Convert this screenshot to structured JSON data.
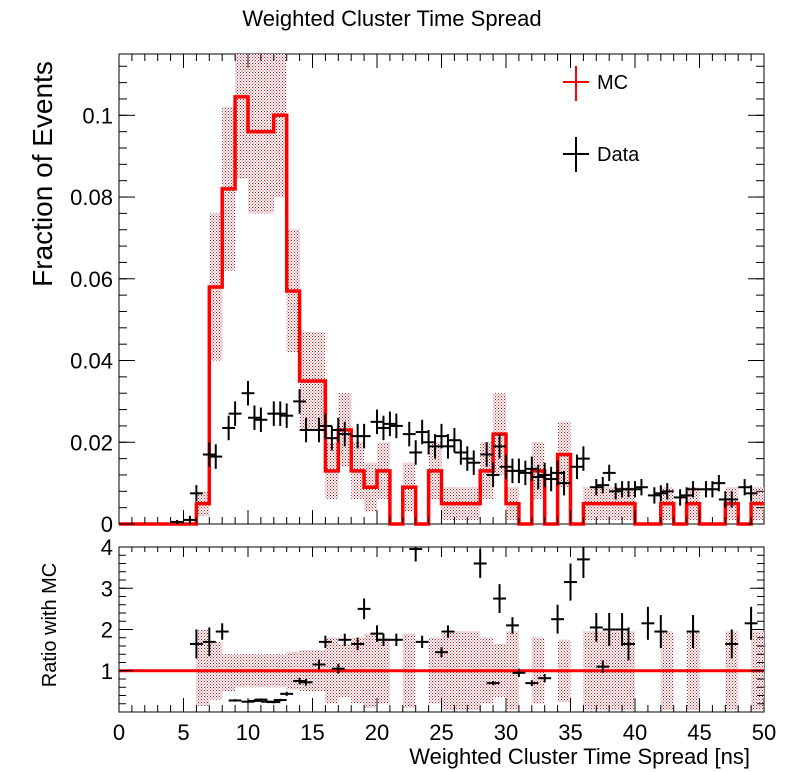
{
  "chart_data": {
    "type": "histogram_with_ratio",
    "title": "Weighted Cluster Time Spread",
    "top_panel": {
      "ylabel": "Fraction of Events",
      "xlim": [
        0,
        50
      ],
      "ylim": [
        0,
        0.115
      ],
      "yticks": [
        "0",
        "0.02",
        "0.04",
        "0.06",
        "0.08",
        "0.1"
      ],
      "ytick_values": [
        0,
        0.02,
        0.04,
        0.06,
        0.08,
        0.1
      ],
      "legend": [
        {
          "label": "MC",
          "color": "#ff0000"
        },
        {
          "label": "Data",
          "color": "#000000"
        }
      ],
      "legend_position": "top-right",
      "bin_width": 1,
      "mc": {
        "name": "MC",
        "color": "#ff0000",
        "bin_starts": [
          0,
          1,
          2,
          3,
          4,
          5,
          6,
          7,
          8,
          9,
          10,
          11,
          12,
          13,
          14,
          15,
          16,
          17,
          18,
          19,
          20,
          21,
          22,
          23,
          24,
          25,
          26,
          27,
          28,
          29,
          30,
          31,
          32,
          33,
          34,
          35,
          36,
          37,
          38,
          39,
          40,
          41,
          42,
          43,
          44,
          45,
          46,
          47,
          48,
          49
        ],
        "values": [
          0,
          0,
          0,
          0,
          0,
          0,
          0.005,
          0.058,
          0.082,
          0.1045,
          0.096,
          0.096,
          0.1,
          0.057,
          0.035,
          0.035,
          0.013,
          0.023,
          0.013,
          0.009,
          0.013,
          0,
          0.009,
          0,
          0.013,
          0.005,
          0.005,
          0.005,
          0.013,
          0.022,
          0.005,
          0,
          0.013,
          0,
          0.017,
          0,
          0.005,
          0.005,
          0.005,
          0.005,
          0,
          0,
          0.005,
          0,
          0.005,
          0,
          0,
          0.005,
          0,
          0.005
        ],
        "uncertainties": [
          0,
          0,
          0,
          0,
          0,
          0,
          0.003,
          0.018,
          0.02,
          0.02,
          0.02,
          0.02,
          0.02,
          0.015,
          0.012,
          0.012,
          0.007,
          0.009,
          0.007,
          0.006,
          0.007,
          0,
          0.006,
          0,
          0.007,
          0.004,
          0.004,
          0.004,
          0.007,
          0.01,
          0.004,
          0,
          0.007,
          0,
          0.008,
          0,
          0.004,
          0.004,
          0.004,
          0.004,
          0,
          0,
          0.004,
          0,
          0.004,
          0,
          0,
          0.004,
          0,
          0.004
        ]
      },
      "data": {
        "name": "Data",
        "color": "#000000",
        "x": [
          4.5,
          5.5,
          6.0,
          7.0,
          7.5,
          8.5,
          9.0,
          10.0,
          10.5,
          11.0,
          12.0,
          12.5,
          13.0,
          14.0,
          14.5,
          15.5,
          16.0,
          16.5,
          17.0,
          17.5,
          18.5,
          19.0,
          20.0,
          20.5,
          21.0,
          21.5,
          22.5,
          23.0,
          23.5,
          24.0,
          24.5,
          25.0,
          25.5,
          26.0,
          26.5,
          27.0,
          27.5,
          28.5,
          29.0,
          29.5,
          30.0,
          30.5,
          31.0,
          31.5,
          32.0,
          32.5,
          33.0,
          33.5,
          34.0,
          34.5,
          35.5,
          36.0,
          37.0,
          37.5,
          38.0,
          38.5,
          39.0,
          39.5,
          40.0,
          40.5,
          41.5,
          42.0,
          42.5,
          43.5,
          44.0,
          44.5,
          45.5,
          46.0,
          46.5,
          47.0,
          47.5,
          48.5,
          49.0
        ],
        "y": [
          0.0005,
          0.001,
          0.0075,
          0.017,
          0.0165,
          0.0235,
          0.027,
          0.032,
          0.026,
          0.0255,
          0.027,
          0.027,
          0.0265,
          0.03,
          0.023,
          0.023,
          0.024,
          0.021,
          0.023,
          0.022,
          0.0215,
          0.0215,
          0.025,
          0.0235,
          0.0245,
          0.024,
          0.022,
          0.0175,
          0.0225,
          0.02,
          0.019,
          0.0215,
          0.019,
          0.0205,
          0.0175,
          0.016,
          0.015,
          0.017,
          0.012,
          0.019,
          0.014,
          0.013,
          0.013,
          0.0125,
          0.0135,
          0.0115,
          0.012,
          0.011,
          0.0125,
          0.01,
          0.014,
          0.016,
          0.009,
          0.0095,
          0.0125,
          0.008,
          0.0085,
          0.0085,
          0.0085,
          0.009,
          0.007,
          0.0075,
          0.008,
          0.0065,
          0.007,
          0.0085,
          0.0085,
          0.0085,
          0.01,
          0.006,
          0.006,
          0.009,
          0.0075
        ],
        "uncertainties": [
          0.0005,
          0.001,
          0.002,
          0.003,
          0.003,
          0.003,
          0.003,
          0.003,
          0.003,
          0.003,
          0.003,
          0.003,
          0.003,
          0.003,
          0.003,
          0.003,
          0.003,
          0.003,
          0.003,
          0.003,
          0.003,
          0.003,
          0.003,
          0.003,
          0.003,
          0.003,
          0.003,
          0.003,
          0.003,
          0.003,
          0.003,
          0.003,
          0.003,
          0.003,
          0.003,
          0.003,
          0.003,
          0.003,
          0.003,
          0.003,
          0.003,
          0.003,
          0.003,
          0.003,
          0.003,
          0.003,
          0.003,
          0.003,
          0.003,
          0.003,
          0.003,
          0.003,
          0.002,
          0.002,
          0.002,
          0.002,
          0.002,
          0.002,
          0.002,
          0.002,
          0.002,
          0.002,
          0.002,
          0.002,
          0.002,
          0.002,
          0.002,
          0.002,
          0.002,
          0.002,
          0.002,
          0.002,
          0.002
        ]
      }
    },
    "ratio_panel": {
      "ylabel": "Ratio with MC",
      "xlabel": "Weighted Cluster Time Spread [ns]",
      "xlim": [
        0,
        50
      ],
      "ylim": [
        0,
        4
      ],
      "yticks": [
        "1",
        "2",
        "3",
        "4"
      ],
      "ytick_values": [
        1,
        2,
        3,
        4
      ],
      "xticks": [
        "0",
        "5",
        "10",
        "15",
        "20",
        "25",
        "30",
        "35",
        "40",
        "45",
        "50"
      ],
      "xtick_values": [
        0,
        5,
        10,
        15,
        20,
        25,
        30,
        35,
        40,
        45,
        50
      ],
      "reference_line": 1,
      "mc_band": [
        {
          "x0": 6,
          "x1": 7,
          "lo": 0.15,
          "hi": 2.0
        },
        {
          "x0": 7,
          "x1": 8,
          "lo": 0.3,
          "hi": 1.7
        },
        {
          "x0": 8,
          "x1": 9,
          "lo": 0.5,
          "hi": 1.4
        },
        {
          "x0": 9,
          "x1": 10,
          "lo": 0.6,
          "hi": 1.4
        },
        {
          "x0": 10,
          "x1": 11,
          "lo": 0.6,
          "hi": 1.4
        },
        {
          "x0": 11,
          "x1": 12,
          "lo": 0.6,
          "hi": 1.4
        },
        {
          "x0": 12,
          "x1": 13,
          "lo": 0.6,
          "hi": 1.4
        },
        {
          "x0": 13,
          "x1": 14,
          "lo": 0.55,
          "hi": 1.45
        },
        {
          "x0": 14,
          "x1": 15,
          "lo": 0.5,
          "hi": 1.5
        },
        {
          "x0": 15,
          "x1": 16,
          "lo": 0.5,
          "hi": 1.5
        },
        {
          "x0": 16,
          "x1": 17,
          "lo": 0.2,
          "hi": 1.8
        },
        {
          "x0": 17,
          "x1": 18,
          "lo": 0.35,
          "hi": 1.65
        },
        {
          "x0": 18,
          "x1": 19,
          "lo": 0.2,
          "hi": 1.8
        },
        {
          "x0": 19,
          "x1": 20,
          "lo": 0.1,
          "hi": 1.9
        },
        {
          "x0": 20,
          "x1": 21,
          "lo": 0.2,
          "hi": 1.8
        },
        {
          "x0": 22,
          "x1": 23,
          "lo": 0.1,
          "hi": 1.9
        },
        {
          "x0": 24,
          "x1": 25,
          "lo": 0.2,
          "hi": 1.8
        },
        {
          "x0": 25,
          "x1": 26,
          "lo": 0.05,
          "hi": 1.95
        },
        {
          "x0": 26,
          "x1": 27,
          "lo": 0.05,
          "hi": 1.95
        },
        {
          "x0": 27,
          "x1": 28,
          "lo": 0.05,
          "hi": 1.95
        },
        {
          "x0": 28,
          "x1": 29,
          "lo": 0.2,
          "hi": 1.8
        },
        {
          "x0": 29,
          "x1": 30,
          "lo": 0.35,
          "hi": 1.65
        },
        {
          "x0": 30,
          "x1": 31,
          "lo": 0.05,
          "hi": 1.95
        },
        {
          "x0": 32,
          "x1": 33,
          "lo": 0.2,
          "hi": 1.8
        },
        {
          "x0": 34,
          "x1": 35,
          "lo": 0.25,
          "hi": 1.75
        },
        {
          "x0": 36,
          "x1": 37,
          "lo": 0.05,
          "hi": 1.95
        },
        {
          "x0": 37,
          "x1": 38,
          "lo": 0.05,
          "hi": 1.95
        },
        {
          "x0": 38,
          "x1": 39,
          "lo": 0.05,
          "hi": 1.95
        },
        {
          "x0": 39,
          "x1": 40,
          "lo": 0.05,
          "hi": 1.95
        },
        {
          "x0": 42,
          "x1": 43,
          "lo": 0.05,
          "hi": 1.95
        },
        {
          "x0": 44,
          "x1": 45,
          "lo": 0.05,
          "hi": 1.95
        },
        {
          "x0": 47,
          "x1": 48,
          "lo": 0.05,
          "hi": 1.95
        },
        {
          "x0": 49,
          "x1": 50,
          "lo": 0.05,
          "hi": 1.95
        }
      ],
      "points": {
        "x": [
          6.0,
          7.0,
          8.0,
          9.0,
          10.0,
          10.5,
          11.0,
          11.5,
          12.0,
          12.5,
          13.0,
          14.0,
          14.5,
          15.5,
          16.0,
          17.0,
          17.5,
          18.5,
          19.0,
          20.0,
          20.5,
          21.5,
          23.0,
          23.5,
          25.0,
          25.5,
          28.0,
          29.0,
          29.5,
          30.5,
          31.0,
          32.0,
          33.0,
          34.0,
          35.0,
          36.0,
          37.0,
          37.5,
          38.0,
          39.0,
          39.5,
          41.0,
          42.0,
          44.5,
          47.5,
          49.0
        ],
        "y": [
          1.65,
          1.7,
          1.95,
          0.28,
          0.25,
          0.27,
          0.3,
          0.25,
          0.24,
          0.29,
          0.44,
          0.75,
          0.72,
          1.15,
          1.7,
          1.05,
          1.75,
          1.65,
          2.5,
          1.9,
          1.75,
          1.75,
          3.95,
          1.7,
          1.45,
          1.95,
          3.6,
          0.7,
          2.75,
          2.1,
          0.95,
          0.7,
          0.82,
          2.25,
          3.15,
          3.7,
          2.05,
          1.1,
          2.0,
          2.0,
          1.65,
          2.15,
          1.95,
          1.95,
          1.65,
          2.15
        ],
        "xerr": [
          0.5,
          0.5,
          0.5,
          0.5,
          0.5,
          0.5,
          0.5,
          0.5,
          0.5,
          0.5,
          0.5,
          0.5,
          0.5,
          0.5,
          0.5,
          0.5,
          0.5,
          0.5,
          0.5,
          0.5,
          0.5,
          0.5,
          0.5,
          0.5,
          0.5,
          0.5,
          0.5,
          0.5,
          0.5,
          0.5,
          0.5,
          0.5,
          0.5,
          0.5,
          0.5,
          0.5,
          0.5,
          0.5,
          0.5,
          0.5,
          0.5,
          0.5,
          0.5,
          0.5,
          0.5,
          0.5
        ],
        "yerr": [
          0.35,
          0.35,
          0.2,
          0.03,
          0.03,
          0.03,
          0.03,
          0.03,
          0.03,
          0.03,
          0.05,
          0.08,
          0.08,
          0.12,
          0.15,
          0.12,
          0.15,
          0.15,
          0.25,
          0.2,
          0.15,
          0.15,
          0.3,
          0.15,
          0.12,
          0.15,
          0.35,
          0.05,
          0.35,
          0.2,
          0.1,
          0.07,
          0.1,
          0.35,
          0.45,
          0.45,
          0.35,
          0.15,
          0.4,
          0.4,
          0.4,
          0.4,
          0.4,
          0.4,
          0.35,
          0.4
        ]
      }
    }
  }
}
